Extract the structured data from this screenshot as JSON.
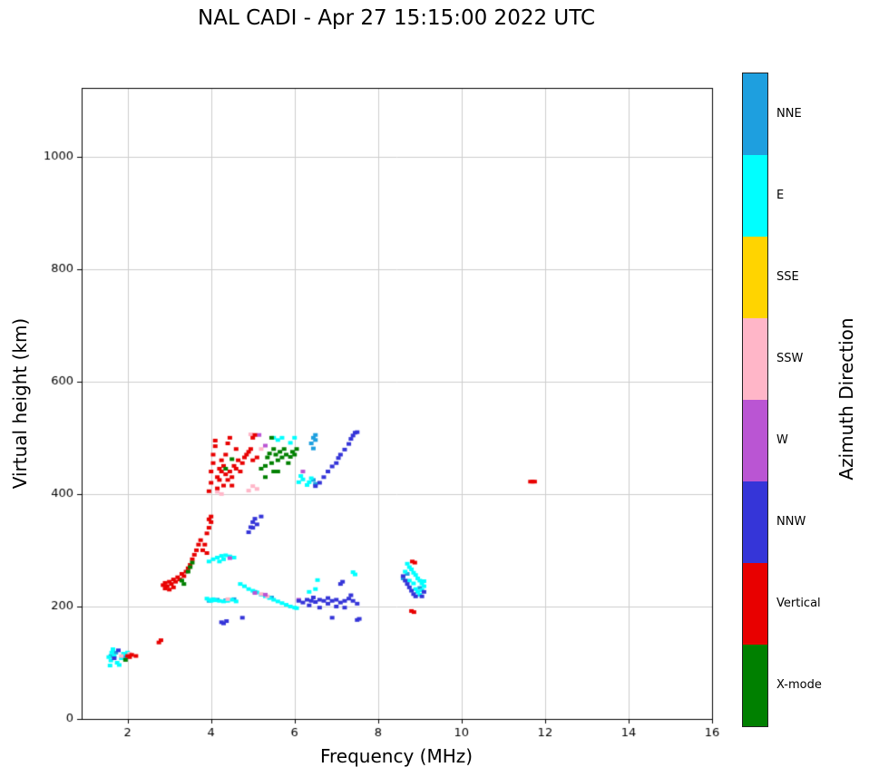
{
  "title": "NAL CADI - Apr 27 15:15:00 2022 UTC",
  "legend": {
    "title": "Azimuth Direction",
    "entries": [
      {
        "label": "NNE",
        "color": "#1e9fdf"
      },
      {
        "label": "E",
        "color": "#00ffff"
      },
      {
        "label": "SSE",
        "color": "#ffd400"
      },
      {
        "label": "SSW",
        "color": "#ffb6c8"
      },
      {
        "label": "W",
        "color": "#ba55d3"
      },
      {
        "label": "NNW",
        "color": "#3535d8"
      },
      {
        "label": "Vertical",
        "color": "#e80000"
      },
      {
        "label": "X-mode",
        "color": "#008000"
      }
    ]
  },
  "chart_data": {
    "type": "scatter",
    "title": "NAL CADI - Apr 27 15:15:00 2022 UTC",
    "xlabel": "Frequency (MHz)",
    "ylabel": "Virtual height (km)",
    "xlim": [
      0.9,
      16
    ],
    "ylim": [
      0,
      1122
    ],
    "x_ticks": [
      2,
      4,
      6,
      8,
      10,
      12,
      14,
      16
    ],
    "y_ticks": [
      0,
      200,
      400,
      600,
      800,
      1000
    ],
    "grid": true,
    "legend_position": "right-colorbar",
    "legend_title": "Azimuth Direction",
    "series": [
      {
        "name": "NNE",
        "color": "#1e9fdf",
        "points": [
          [
            1.6,
            112
          ],
          [
            1.72,
            118
          ],
          [
            1.95,
            110
          ],
          [
            3.95,
            210
          ],
          [
            4.15,
            212
          ],
          [
            4.35,
            211
          ],
          [
            4.55,
            213
          ],
          [
            5.05,
            226
          ],
          [
            5.45,
            216
          ],
          [
            6.4,
            490
          ],
          [
            6.45,
            500
          ],
          [
            6.5,
            505
          ],
          [
            6.45,
            481
          ],
          [
            6.5,
            496
          ],
          [
            6.5,
            418
          ],
          [
            6.45,
            425
          ],
          [
            8.7,
            258
          ],
          [
            9.0,
            233
          ],
          [
            8.6,
            250
          ]
        ]
      },
      {
        "name": "E",
        "color": "#00ffff",
        "points": [
          [
            1.55,
            110
          ],
          [
            1.6,
            104
          ],
          [
            1.62,
            118
          ],
          [
            1.68,
            112
          ],
          [
            1.75,
            100
          ],
          [
            1.8,
            96
          ],
          [
            1.85,
            108
          ],
          [
            1.9,
            116
          ],
          [
            2.0,
            118
          ],
          [
            1.65,
            124
          ],
          [
            1.58,
            95
          ],
          [
            3.95,
            280
          ],
          [
            4.05,
            284
          ],
          [
            4.15,
            287
          ],
          [
            4.2,
            280
          ],
          [
            4.25,
            290
          ],
          [
            4.3,
            284
          ],
          [
            4.35,
            291
          ],
          [
            4.45,
            289
          ],
          [
            4.55,
            287
          ],
          [
            3.9,
            214
          ],
          [
            3.95,
            212
          ],
          [
            4.0,
            210
          ],
          [
            4.05,
            213
          ],
          [
            4.1,
            211
          ],
          [
            4.2,
            210
          ],
          [
            4.3,
            209
          ],
          [
            4.4,
            210
          ],
          [
            4.5,
            212
          ],
          [
            4.6,
            209
          ],
          [
            4.7,
            240
          ],
          [
            4.8,
            236
          ],
          [
            4.9,
            231
          ],
          [
            5.0,
            228
          ],
          [
            5.1,
            225
          ],
          [
            5.2,
            221
          ],
          [
            5.3,
            218
          ],
          [
            5.4,
            215
          ],
          [
            5.5,
            212
          ],
          [
            5.6,
            209
          ],
          [
            5.7,
            206
          ],
          [
            5.8,
            203
          ],
          [
            5.9,
            200
          ],
          [
            6.0,
            198
          ],
          [
            6.05,
            197
          ],
          [
            5.5,
            500
          ],
          [
            5.6,
            496
          ],
          [
            5.7,
            500
          ],
          [
            5.9,
            491
          ],
          [
            6.0,
            500
          ],
          [
            6.1,
            421
          ],
          [
            6.15,
            432
          ],
          [
            6.2,
            426
          ],
          [
            6.3,
            416
          ],
          [
            6.35,
            421
          ],
          [
            6.4,
            428
          ],
          [
            6.35,
            226
          ],
          [
            6.5,
            231
          ],
          [
            6.55,
            247
          ],
          [
            7.4,
            261
          ],
          [
            7.45,
            257
          ],
          [
            8.65,
            262
          ],
          [
            8.7,
            276
          ],
          [
            8.75,
            270
          ],
          [
            8.75,
            246
          ],
          [
            8.8,
            266
          ],
          [
            8.85,
            260
          ],
          [
            8.85,
            241
          ],
          [
            8.9,
            256
          ],
          [
            8.9,
            231
          ],
          [
            8.95,
            250
          ],
          [
            8.95,
            226
          ],
          [
            9.0,
            246
          ],
          [
            9.0,
            221
          ],
          [
            9.05,
            241
          ],
          [
            9.05,
            229
          ],
          [
            9.1,
            236
          ],
          [
            9.1,
            245
          ]
        ]
      },
      {
        "name": "SSE",
        "color": "#ffd400",
        "points": []
      },
      {
        "name": "SSW",
        "color": "#ffb6c8",
        "points": [
          [
            1.85,
            112
          ],
          [
            2.05,
            116
          ],
          [
            4.15,
            404
          ],
          [
            4.25,
            400
          ],
          [
            4.9,
            406
          ],
          [
            5.0,
            414
          ],
          [
            5.1,
            409
          ],
          [
            5.2,
            480
          ],
          [
            4.95,
            506
          ],
          [
            5.2,
            222
          ],
          [
            5.35,
            218
          ],
          [
            4.4,
            213
          ]
        ]
      },
      {
        "name": "W",
        "color": "#ba55d3",
        "points": [
          [
            5.15,
            505
          ],
          [
            5.3,
            486
          ],
          [
            6.2,
            440
          ],
          [
            5.05,
            224
          ],
          [
            5.3,
            221
          ],
          [
            4.45,
            286
          ],
          [
            6.1,
            212
          ]
        ]
      },
      {
        "name": "NNW",
        "color": "#3535d8",
        "points": [
          [
            1.78,
            122
          ],
          [
            1.68,
            108
          ],
          [
            4.25,
            172
          ],
          [
            4.3,
            170
          ],
          [
            4.37,
            174
          ],
          [
            4.75,
            180
          ],
          [
            4.9,
            332
          ],
          [
            4.95,
            341
          ],
          [
            5.0,
            350
          ],
          [
            5.0,
            340
          ],
          [
            5.05,
            356
          ],
          [
            5.1,
            346
          ],
          [
            5.2,
            360
          ],
          [
            6.1,
            210
          ],
          [
            6.2,
            207
          ],
          [
            6.3,
            212
          ],
          [
            6.35,
            202
          ],
          [
            6.4,
            210
          ],
          [
            6.45,
            216
          ],
          [
            6.5,
            208
          ],
          [
            6.6,
            212
          ],
          [
            6.6,
            198
          ],
          [
            6.7,
            210
          ],
          [
            6.8,
            205
          ],
          [
            6.8,
            215
          ],
          [
            6.9,
            210
          ],
          [
            6.9,
            180
          ],
          [
            7.0,
            212
          ],
          [
            7.0,
            200
          ],
          [
            7.1,
            207
          ],
          [
            7.1,
            240
          ],
          [
            7.15,
            244
          ],
          [
            7.2,
            210
          ],
          [
            7.2,
            198
          ],
          [
            7.3,
            214
          ],
          [
            7.35,
            220
          ],
          [
            7.4,
            210
          ],
          [
            7.5,
            205
          ],
          [
            7.5,
            176
          ],
          [
            7.55,
            178
          ],
          [
            6.5,
            414
          ],
          [
            6.6,
            420
          ],
          [
            6.7,
            430
          ],
          [
            6.8,
            440
          ],
          [
            6.9,
            449
          ],
          [
            7.0,
            455
          ],
          [
            7.05,
            464
          ],
          [
            7.1,
            470
          ],
          [
            7.2,
            479
          ],
          [
            7.3,
            489
          ],
          [
            7.35,
            498
          ],
          [
            7.4,
            504
          ],
          [
            7.45,
            509
          ],
          [
            7.5,
            510
          ],
          [
            8.6,
            254
          ],
          [
            8.65,
            246
          ],
          [
            8.7,
            240
          ],
          [
            8.75,
            234
          ],
          [
            8.8,
            228
          ],
          [
            8.85,
            222
          ],
          [
            8.9,
            218
          ],
          [
            9.05,
            218
          ],
          [
            9.1,
            226
          ]
        ]
      },
      {
        "name": "Vertical",
        "color": "#e80000",
        "points": [
          [
            2.0,
            112
          ],
          [
            2.05,
            110
          ],
          [
            2.1,
            114
          ],
          [
            2.2,
            112
          ],
          [
            2.75,
            136
          ],
          [
            2.8,
            140
          ],
          [
            2.85,
            238
          ],
          [
            2.9,
            242
          ],
          [
            2.9,
            232
          ],
          [
            2.95,
            236
          ],
          [
            3.0,
            244
          ],
          [
            3.0,
            230
          ],
          [
            3.05,
            240
          ],
          [
            3.1,
            248
          ],
          [
            3.1,
            234
          ],
          [
            3.15,
            244
          ],
          [
            3.2,
            252
          ],
          [
            3.25,
            248
          ],
          [
            3.3,
            258
          ],
          [
            3.35,
            254
          ],
          [
            3.4,
            262
          ],
          [
            3.45,
            268
          ],
          [
            3.5,
            274
          ],
          [
            3.55,
            284
          ],
          [
            3.6,
            292
          ],
          [
            3.65,
            300
          ],
          [
            3.7,
            310
          ],
          [
            3.75,
            318
          ],
          [
            3.8,
            300
          ],
          [
            3.85,
            310
          ],
          [
            3.9,
            295
          ],
          [
            3.9,
            330
          ],
          [
            3.95,
            340
          ],
          [
            3.95,
            355
          ],
          [
            4.0,
            350
          ],
          [
            4.0,
            360
          ],
          [
            3.95,
            405
          ],
          [
            4.0,
            420
          ],
          [
            4.0,
            440
          ],
          [
            4.05,
            455
          ],
          [
            4.05,
            470
          ],
          [
            4.1,
            485
          ],
          [
            4.1,
            495
          ],
          [
            4.15,
            430
          ],
          [
            4.15,
            410
          ],
          [
            4.2,
            445
          ],
          [
            4.2,
            425
          ],
          [
            4.25,
            460
          ],
          [
            4.25,
            440
          ],
          [
            4.3,
            415
          ],
          [
            4.3,
            450
          ],
          [
            4.35,
            435
          ],
          [
            4.35,
            470
          ],
          [
            4.4,
            425
          ],
          [
            4.4,
            490
          ],
          [
            4.45,
            440
          ],
          [
            4.45,
            500
          ],
          [
            4.5,
            430
          ],
          [
            4.5,
            415
          ],
          [
            4.55,
            450
          ],
          [
            4.6,
            445
          ],
          [
            4.6,
            480
          ],
          [
            4.65,
            460
          ],
          [
            4.7,
            440
          ],
          [
            4.75,
            455
          ],
          [
            4.8,
            465
          ],
          [
            4.85,
            470
          ],
          [
            4.9,
            475
          ],
          [
            4.95,
            480
          ],
          [
            5.0,
            500
          ],
          [
            5.0,
            460
          ],
          [
            5.05,
            505
          ],
          [
            5.1,
            465
          ],
          [
            8.82,
            280
          ],
          [
            8.88,
            278
          ],
          [
            8.8,
            192
          ],
          [
            8.86,
            190
          ],
          [
            11.65,
            422
          ],
          [
            11.7,
            422
          ],
          [
            11.75,
            422
          ]
        ]
      },
      {
        "name": "X-mode",
        "color": "#008000",
        "points": [
          [
            1.95,
            105
          ],
          [
            3.3,
            246
          ],
          [
            3.35,
            240
          ],
          [
            3.45,
            262
          ],
          [
            3.5,
            270
          ],
          [
            3.55,
            278
          ],
          [
            4.35,
            445
          ],
          [
            4.5,
            462
          ],
          [
            5.2,
            445
          ],
          [
            5.3,
            450
          ],
          [
            5.3,
            430
          ],
          [
            5.35,
            465
          ],
          [
            5.4,
            472
          ],
          [
            5.45,
            455
          ],
          [
            5.45,
            500
          ],
          [
            5.5,
            480
          ],
          [
            5.5,
            440
          ],
          [
            5.55,
            470
          ],
          [
            5.6,
            460
          ],
          [
            5.6,
            440
          ],
          [
            5.65,
            475
          ],
          [
            5.7,
            465
          ],
          [
            5.75,
            480
          ],
          [
            5.8,
            470
          ],
          [
            5.85,
            455
          ],
          [
            5.9,
            466
          ],
          [
            5.95,
            475
          ],
          [
            6.0,
            470
          ],
          [
            6.05,
            480
          ]
        ]
      }
    ]
  }
}
